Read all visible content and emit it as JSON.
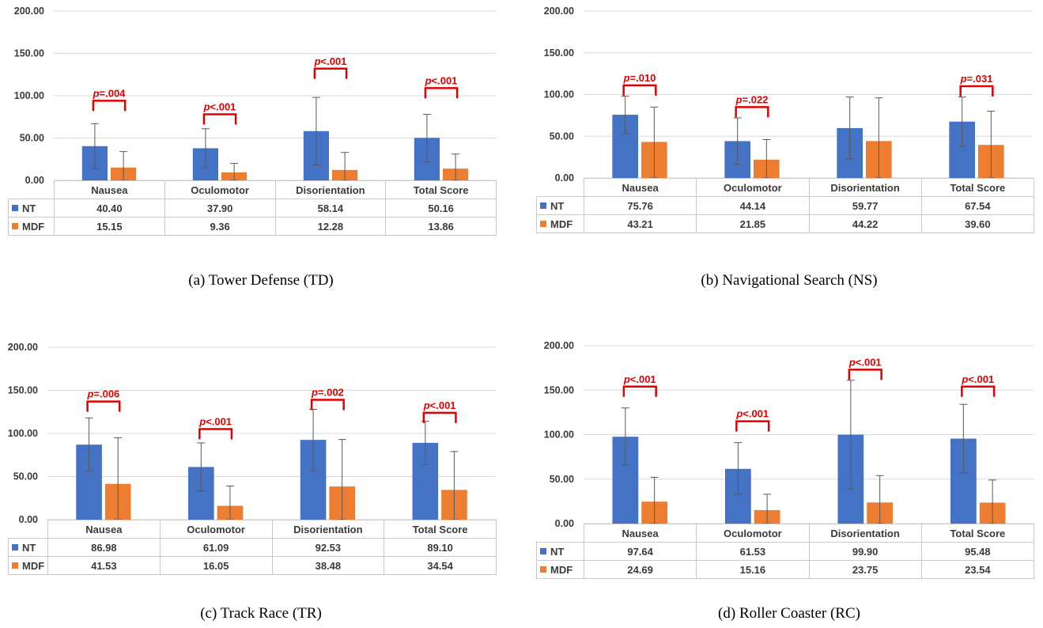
{
  "colors": {
    "nt": "#4472C4",
    "mdf": "#ED7D31",
    "significance": "#E00000",
    "grid": "#D9D9D9",
    "error_bar": "#595959"
  },
  "chart_data": [
    {
      "type": "bar",
      "caption_label": "(a)",
      "caption_title": "Tower Defense (TD)",
      "categories": [
        "Nausea",
        "Oculomotor",
        "Disorientation",
        "Total Score"
      ],
      "ylim": [
        0,
        200
      ],
      "yticks": [
        "0.00",
        "50.00",
        "100.00",
        "150.00",
        "200.00"
      ],
      "grid": true,
      "legend": "data-table",
      "series": [
        {
          "name": "NT",
          "values": [
            40.4,
            37.9,
            58.14,
            50.16
          ],
          "value_labels": [
            "40.40",
            "37.90",
            "58.14",
            "50.16"
          ],
          "err_low": [
            14,
            15,
            18,
            22
          ],
          "err_high": [
            67,
            61,
            98,
            78
          ]
        },
        {
          "name": "MDF",
          "values": [
            15.15,
            9.36,
            12.28,
            13.86
          ],
          "value_labels": [
            "15.15",
            "9.36",
            "12.28",
            "13.86"
          ],
          "err_low": [
            0,
            0,
            0,
            0
          ],
          "err_high": [
            34,
            20,
            33,
            31
          ]
        }
      ],
      "annotations": [
        {
          "category": 0,
          "prefix": "p",
          "text": "=.004",
          "level": 94
        },
        {
          "category": 1,
          "prefix": "p",
          "text": "<.001",
          "level": 78
        },
        {
          "category": 2,
          "prefix": "p",
          "text": "<.001",
          "level": 132
        },
        {
          "category": 3,
          "prefix": "p",
          "text": "<.001",
          "level": 109
        }
      ]
    },
    {
      "type": "bar",
      "caption_label": "(b)",
      "caption_title": "Navigational Search (NS)",
      "categories": [
        "Nausea",
        "Oculomotor",
        "Disorientation",
        "Total Score"
      ],
      "ylim": [
        0,
        200
      ],
      "yticks": [
        "0.00",
        "50.00",
        "100.00",
        "150.00",
        "200.00"
      ],
      "grid": true,
      "legend": "data-table",
      "series": [
        {
          "name": "NT",
          "values": [
            75.76,
            44.14,
            59.77,
            67.54
          ],
          "value_labels": [
            "75.76",
            "44.14",
            "59.77",
            "67.54"
          ],
          "err_low": [
            53,
            16,
            23,
            38
          ],
          "err_high": [
            98,
            72,
            97,
            97
          ]
        },
        {
          "name": "MDF",
          "values": [
            43.21,
            21.85,
            44.22,
            39.6
          ],
          "value_labels": [
            "43.21",
            "21.85",
            "44.22",
            "39.60"
          ],
          "err_low": [
            0,
            0,
            0,
            0
          ],
          "err_high": [
            85,
            46,
            96,
            80
          ]
        }
      ],
      "annotations": [
        {
          "category": 0,
          "prefix": "p",
          "text": "=.010",
          "level": 111
        },
        {
          "category": 1,
          "prefix": "p",
          "text": "=.022",
          "level": 85
        },
        {
          "category": 3,
          "prefix": "p",
          "text": "=.031",
          "level": 110
        }
      ]
    },
    {
      "type": "bar",
      "caption_label": "(c)",
      "caption_title": "Track Race (TR)",
      "categories": [
        "Nausea",
        "Oculomotor",
        "Disorientation",
        "Total Score"
      ],
      "ylim": [
        0,
        200
      ],
      "yticks": [
        "0.00",
        "50.00",
        "100.00",
        "150.00",
        "200.00"
      ],
      "grid": true,
      "legend": "data-table",
      "series": [
        {
          "name": "NT",
          "values": [
            86.98,
            61.09,
            92.53,
            89.1
          ],
          "value_labels": [
            "86.98",
            "61.09",
            "92.53",
            "89.10"
          ],
          "err_low": [
            56,
            33,
            57,
            64
          ],
          "err_high": [
            118,
            89,
            128,
            114
          ]
        },
        {
          "name": "MDF",
          "values": [
            41.53,
            16.05,
            38.48,
            34.54
          ],
          "value_labels": [
            "41.53",
            "16.05",
            "38.48",
            "34.54"
          ],
          "err_low": [
            0,
            0,
            0,
            0
          ],
          "err_high": [
            95,
            39,
            93,
            79
          ]
        }
      ],
      "annotations": [
        {
          "category": 0,
          "prefix": "p",
          "text": "=.006",
          "level": 137
        },
        {
          "category": 1,
          "prefix": "p",
          "text": "<.001",
          "level": 105
        },
        {
          "category": 2,
          "prefix": "p",
          "text": "=.002",
          "level": 139
        },
        {
          "category": 3,
          "prefix": "p",
          "text": "<.001",
          "level": 124
        }
      ]
    },
    {
      "type": "bar",
      "caption_label": "(d)",
      "caption_title": "Roller Coaster (RC)",
      "categories": [
        "Nausea",
        "Oculomotor",
        "Disorientation",
        "Total Score"
      ],
      "ylim": [
        0,
        200
      ],
      "yticks": [
        "0.00",
        "50.00",
        "100.00",
        "150.00",
        "200.00"
      ],
      "grid": true,
      "legend": "data-table",
      "series": [
        {
          "name": "NT",
          "values": [
            97.64,
            61.53,
            99.9,
            95.48
          ],
          "value_labels": [
            "97.64",
            "61.53",
            "99.90",
            "95.48"
          ],
          "err_low": [
            66,
            33,
            39,
            57
          ],
          "err_high": [
            130,
            91,
            161,
            134
          ]
        },
        {
          "name": "MDF",
          "values": [
            24.69,
            15.16,
            23.75,
            23.54
          ],
          "value_labels": [
            "24.69",
            "15.16",
            "23.75",
            "23.54"
          ],
          "err_low": [
            0,
            0,
            0,
            0
          ],
          "err_high": [
            52,
            33,
            54,
            49
          ]
        }
      ],
      "annotations": [
        {
          "category": 0,
          "prefix": "p",
          "text": "<.001",
          "level": 154
        },
        {
          "category": 1,
          "prefix": "p",
          "text": "<.001",
          "level": 115
        },
        {
          "category": 2,
          "prefix": "p",
          "text": "<.001",
          "level": 173
        },
        {
          "category": 3,
          "prefix": "p",
          "text": "<.001",
          "level": 154
        }
      ]
    }
  ]
}
